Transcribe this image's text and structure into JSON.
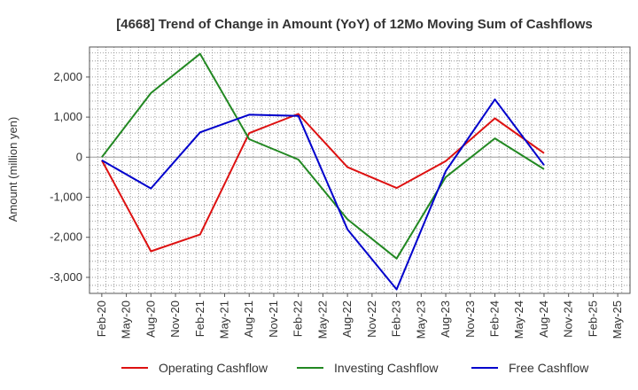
{
  "chart_data": {
    "type": "line",
    "title": "[4668]  Trend of Change in Amount (YoY) of 12Mo Moving Sum of Cashflows",
    "xlabel": "",
    "ylabel": "Amount (million yen)",
    "ylim": [
      -3400,
      2750
    ],
    "yticks": [
      -3000,
      -2000,
      -1000,
      0,
      1000,
      2000
    ],
    "ytick_labels": [
      "-3,000",
      "-2,000",
      "-1,000",
      "0",
      "1,000",
      "2,000"
    ],
    "categories": [
      "Feb-20",
      "May-20",
      "Aug-20",
      "Nov-20",
      "Feb-21",
      "May-21",
      "Aug-21",
      "Nov-21",
      "Feb-22",
      "May-22",
      "Aug-22",
      "Nov-22",
      "Feb-23",
      "May-23",
      "Aug-23",
      "Nov-23",
      "Feb-24",
      "May-24",
      "Aug-24",
      "Nov-24",
      "Feb-25",
      "May-25"
    ],
    "grid": true,
    "legend_position": "bottom",
    "series": [
      {
        "name": "Operating Cashflow",
        "color": "#dd1111",
        "values": [
          -80,
          null,
          -2350,
          null,
          -1930,
          null,
          600,
          null,
          1080,
          null,
          -250,
          null,
          -770,
          null,
          -100,
          null,
          970,
          null,
          100,
          null,
          null,
          null
        ]
      },
      {
        "name": "Investing Cashflow",
        "color": "#228822",
        "values": [
          0,
          null,
          1600,
          null,
          2580,
          null,
          450,
          null,
          -60,
          null,
          -1550,
          null,
          -2530,
          null,
          -500,
          null,
          470,
          null,
          -300,
          null,
          null,
          null
        ]
      },
      {
        "name": "Free Cashflow",
        "color": "#0000cc",
        "values": [
          -80,
          null,
          -780,
          null,
          620,
          null,
          1060,
          null,
          1030,
          null,
          -1800,
          null,
          -3300,
          null,
          -350,
          null,
          1440,
          null,
          -200,
          null,
          null,
          null
        ]
      }
    ]
  }
}
